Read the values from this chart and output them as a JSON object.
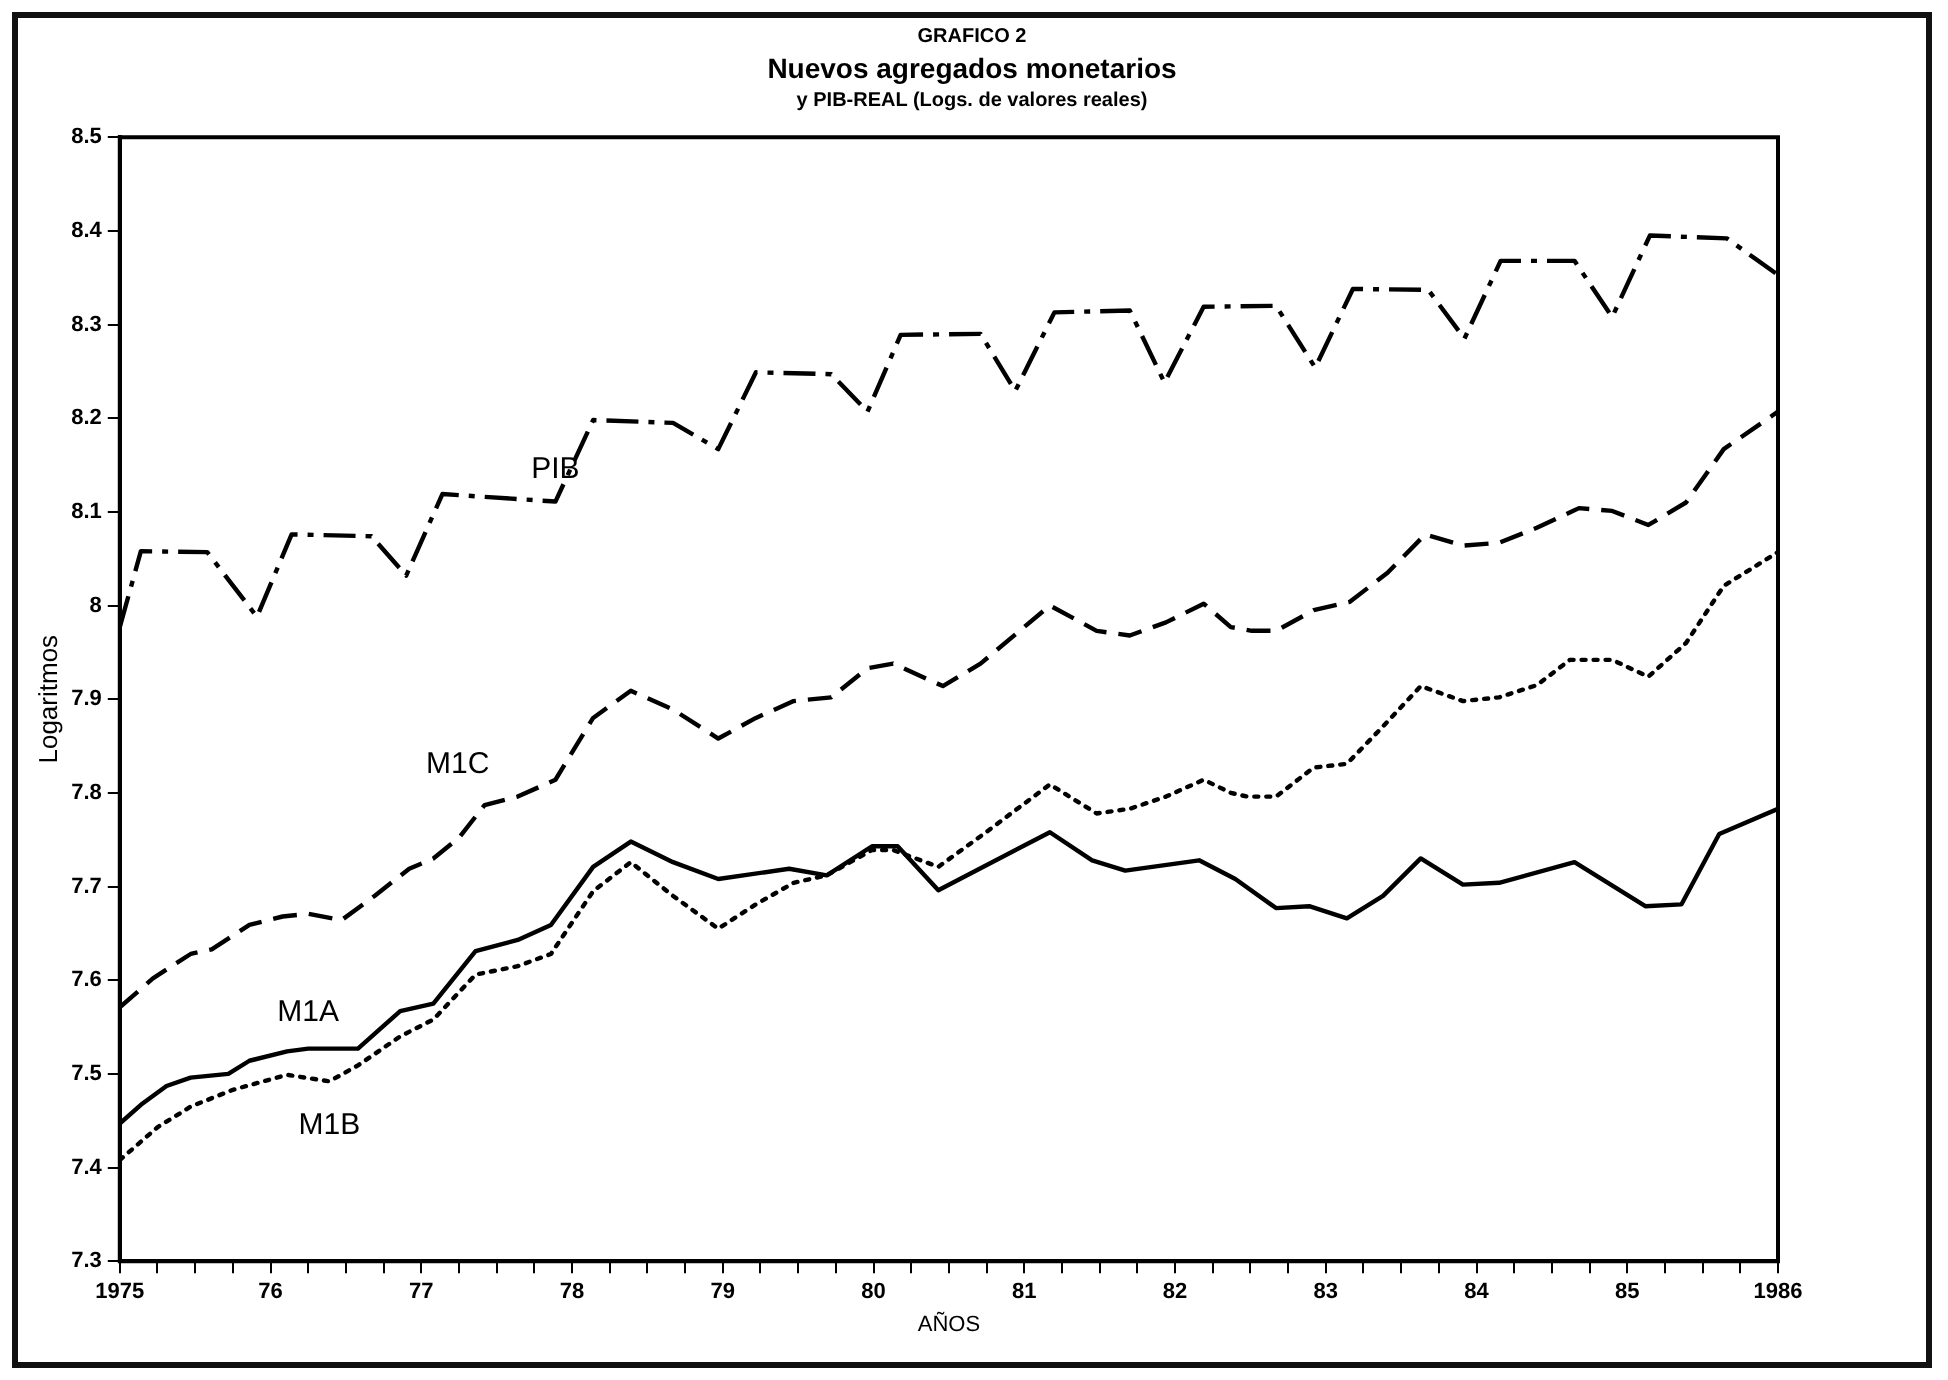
{
  "chart_data": {
    "type": "line",
    "annotations": [
      "GRAFICO 2"
    ],
    "title": "Nuevos agregados monetarios",
    "subtitle": "y PIB-REAL (Logs. de valores reales)",
    "xlabel": "AÑOS",
    "ylabel": "Logaritmos",
    "xlim": [
      1975,
      1986
    ],
    "ylim": [
      7.3,
      8.5
    ],
    "yticks": [
      7.3,
      7.4,
      7.5,
      7.6,
      7.7,
      7.8,
      7.9,
      {
        "value": 8,
        "label": "8"
      },
      8.1,
      8.2,
      8.3,
      8.4,
      8.5
    ],
    "xticks": [
      {
        "value": 1975,
        "label": "1975"
      },
      {
        "value": 1975.25,
        "label": null
      },
      {
        "value": 1975.5,
        "label": null
      },
      {
        "value": 1975.75,
        "label": null
      },
      {
        "value": 1976,
        "label": "76"
      },
      {
        "value": 1976.25,
        "label": null
      },
      {
        "value": 1976.5,
        "label": null
      },
      {
        "value": 1976.75,
        "label": null
      },
      {
        "value": 1977,
        "label": "77"
      },
      {
        "value": 1977.25,
        "label": null
      },
      {
        "value": 1977.5,
        "label": null
      },
      {
        "value": 1977.75,
        "label": null
      },
      {
        "value": 1978,
        "label": "78"
      },
      {
        "value": 1978.25,
        "label": null
      },
      {
        "value": 1978.5,
        "label": null
      },
      {
        "value": 1978.75,
        "label": null
      },
      {
        "value": 1979,
        "label": "79"
      },
      {
        "value": 1979.25,
        "label": null
      },
      {
        "value": 1979.5,
        "label": null
      },
      {
        "value": 1979.75,
        "label": null
      },
      {
        "value": 1980,
        "label": "80"
      },
      {
        "value": 1980.25,
        "label": null
      },
      {
        "value": 1980.5,
        "label": null
      },
      {
        "value": 1980.75,
        "label": null
      },
      {
        "value": 1981,
        "label": "81"
      },
      {
        "value": 1981.25,
        "label": null
      },
      {
        "value": 1981.5,
        "label": null
      },
      {
        "value": 1981.75,
        "label": null
      },
      {
        "value": 1982,
        "label": "82"
      },
      {
        "value": 1982.25,
        "label": null
      },
      {
        "value": 1982.5,
        "label": null
      },
      {
        "value": 1982.75,
        "label": null
      },
      {
        "value": 1983,
        "label": "83"
      },
      {
        "value": 1983.25,
        "label": null
      },
      {
        "value": 1983.5,
        "label": null
      },
      {
        "value": 1983.75,
        "label": null
      },
      {
        "value": 1984,
        "label": "84"
      },
      {
        "value": 1984.25,
        "label": null
      },
      {
        "value": 1984.5,
        "label": null
      },
      {
        "value": 1984.75,
        "label": null
      },
      {
        "value": 1985,
        "label": "85"
      },
      {
        "value": 1985.25,
        "label": null
      },
      {
        "value": 1985.5,
        "label": null
      },
      {
        "value": 1985.75,
        "label": null
      },
      {
        "value": 1986,
        "label": "1986"
      }
    ],
    "series": [
      {
        "name": "PIB",
        "color": "#000000",
        "line_style": "dashdot",
        "x": [
          1975.0,
          1975.14,
          1975.58,
          1975.91,
          1976.14,
          1976.67,
          1976.9,
          1977.14,
          1977.89,
          1978.14,
          1978.67,
          1978.97,
          1979.22,
          1979.72,
          1979.96,
          1980.18,
          1980.71,
          1980.94,
          1981.2,
          1981.7,
          1981.93,
          1982.19,
          1982.67,
          1982.93,
          1983.18,
          1983.68,
          1983.92,
          1984.16,
          1984.65,
          1984.9,
          1985.15,
          1985.66,
          1986.0
        ],
        "values": [
          7.977,
          8.058,
          8.057,
          7.988,
          8.076,
          8.074,
          8.032,
          8.119,
          8.111,
          8.198,
          8.195,
          8.167,
          8.249,
          8.247,
          8.207,
          8.289,
          8.29,
          8.229,
          8.313,
          8.315,
          8.238,
          8.319,
          8.32,
          8.254,
          8.338,
          8.337,
          8.285,
          8.368,
          8.368,
          8.308,
          8.395,
          8.392,
          8.353
        ]
      },
      {
        "name": "M1C",
        "color": "#000000",
        "line_style": "dashed",
        "x": [
          1975.0,
          1975.22,
          1975.47,
          1975.61,
          1975.86,
          1976.08,
          1976.25,
          1976.47,
          1976.69,
          1976.92,
          1977.08,
          1977.25,
          1977.42,
          1977.64,
          1977.89,
          1978.14,
          1978.39,
          1978.67,
          1978.97,
          1979.22,
          1979.47,
          1979.72,
          1979.96,
          1980.13,
          1980.46,
          1980.71,
          1981.17,
          1981.48,
          1981.7,
          1981.94,
          1982.19,
          1982.37,
          1982.51,
          1982.67,
          1982.92,
          1983.16,
          1983.41,
          1983.66,
          1983.91,
          1984.15,
          1984.4,
          1984.68,
          1984.9,
          1985.14,
          1985.39,
          1985.64,
          1986.0
        ],
        "values": [
          7.571,
          7.602,
          7.628,
          7.633,
          7.659,
          7.668,
          7.671,
          7.664,
          7.69,
          7.719,
          7.73,
          7.752,
          7.787,
          7.796,
          7.814,
          7.88,
          7.909,
          7.889,
          7.858,
          7.88,
          7.898,
          7.902,
          7.933,
          7.938,
          7.914,
          7.938,
          8.0,
          7.973,
          7.968,
          7.982,
          8.002,
          7.977,
          7.973,
          7.973,
          7.995,
          8.004,
          8.035,
          8.076,
          8.064,
          8.067,
          8.083,
          8.104,
          8.101,
          8.086,
          8.11,
          8.167,
          8.207
        ]
      },
      {
        "name": "M1A",
        "color": "#000000",
        "line_style": "solid",
        "x": [
          1975.0,
          1975.14,
          1975.31,
          1975.47,
          1975.72,
          1975.86,
          1976.11,
          1976.25,
          1976.58,
          1976.86,
          1977.08,
          1977.36,
          1977.64,
          1977.86,
          1978.14,
          1978.39,
          1978.67,
          1978.97,
          1979.44,
          1979.69,
          1979.99,
          1980.16,
          1980.43,
          1981.17,
          1981.45,
          1981.67,
          1982.16,
          1982.4,
          1982.67,
          1982.89,
          1983.14,
          1983.38,
          1983.63,
          1983.91,
          1984.15,
          1984.65,
          1985.12,
          1985.36,
          1985.61,
          1986.0
        ],
        "values": [
          7.447,
          7.467,
          7.487,
          7.496,
          7.5,
          7.514,
          7.524,
          7.527,
          7.527,
          7.567,
          7.575,
          7.631,
          7.643,
          7.659,
          7.721,
          7.748,
          7.726,
          7.708,
          7.719,
          7.712,
          7.743,
          7.743,
          7.696,
          7.758,
          7.728,
          7.717,
          7.728,
          7.708,
          7.677,
          7.679,
          7.666,
          7.69,
          7.73,
          7.702,
          7.704,
          7.726,
          7.679,
          7.681,
          7.756,
          7.783
        ]
      },
      {
        "name": "M1B",
        "color": "#000000",
        "line_style": "dotted",
        "x": [
          1975.0,
          1975.25,
          1975.47,
          1975.75,
          1976.11,
          1976.39,
          1976.58,
          1976.86,
          1977.08,
          1977.36,
          1977.64,
          1977.86,
          1978.14,
          1978.39,
          1978.67,
          1978.97,
          1979.22,
          1979.47,
          1979.69,
          1979.99,
          1980.13,
          1980.43,
          1980.73,
          1981.17,
          1981.48,
          1981.7,
          1981.94,
          1982.19,
          1982.37,
          1982.48,
          1982.67,
          1982.92,
          1983.14,
          1983.38,
          1983.63,
          1983.91,
          1984.15,
          1984.4,
          1984.62,
          1984.9,
          1985.14,
          1985.39,
          1985.64,
          1986.0
        ],
        "values": [
          7.408,
          7.443,
          7.465,
          7.483,
          7.499,
          7.492,
          7.509,
          7.54,
          7.558,
          7.606,
          7.615,
          7.628,
          7.695,
          7.726,
          7.69,
          7.655,
          7.681,
          7.704,
          7.712,
          7.739,
          7.739,
          7.721,
          7.756,
          7.809,
          7.778,
          7.783,
          7.796,
          7.814,
          7.8,
          7.796,
          7.796,
          7.827,
          7.831,
          7.871,
          7.914,
          7.898,
          7.902,
          7.915,
          7.942,
          7.942,
          7.924,
          7.96,
          8.021,
          8.057
        ]
      }
    ]
  }
}
